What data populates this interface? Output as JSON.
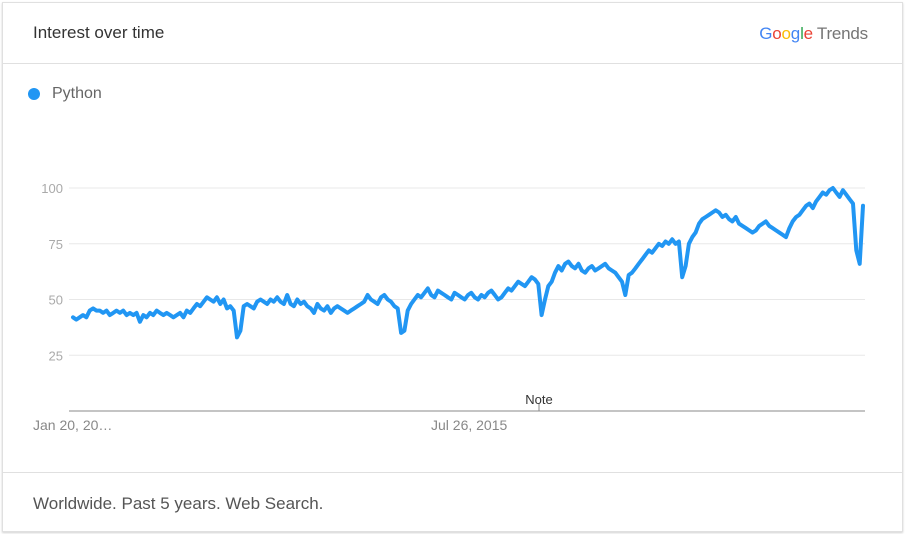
{
  "header": {
    "title": "Interest over time"
  },
  "brand": {
    "google": "Google",
    "product": "Trends"
  },
  "legend": {
    "label": "Python",
    "color": "#2196F3"
  },
  "footer": {
    "text": "Worldwide. Past 5 years. Web Search."
  },
  "note_label": "Note",
  "chart_data": {
    "type": "line",
    "title": "Interest over time",
    "xlabel": "",
    "ylabel": "",
    "ylim": [
      0,
      100
    ],
    "yticks": [
      25,
      50,
      75,
      100
    ],
    "xtick_labels": [
      "Jan 20, 20…",
      "Jul 26, 2015"
    ],
    "grid": true,
    "series": [
      {
        "name": "Python",
        "color": "#2196F3",
        "values": [
          42,
          41,
          42,
          43,
          42,
          45,
          46,
          45,
          45,
          44,
          45,
          43,
          44,
          45,
          44,
          45,
          43,
          44,
          43,
          44,
          40,
          43,
          42,
          44,
          43,
          45,
          44,
          43,
          44,
          43,
          42,
          43,
          44,
          42,
          45,
          44,
          46,
          48,
          47,
          49,
          51,
          50,
          49,
          51,
          48,
          50,
          46,
          47,
          45,
          33,
          36,
          47,
          48,
          47,
          46,
          49,
          50,
          49,
          48,
          50,
          49,
          51,
          49,
          48,
          52,
          48,
          47,
          50,
          48,
          49,
          47,
          46,
          44,
          48,
          46,
          45,
          47,
          44,
          46,
          47,
          46,
          45,
          44,
          45,
          46,
          47,
          48,
          49,
          52,
          50,
          49,
          48,
          51,
          52,
          50,
          49,
          47,
          46,
          35,
          36,
          45,
          48,
          50,
          52,
          51,
          53,
          55,
          52,
          51,
          54,
          53,
          52,
          51,
          50,
          53,
          52,
          51,
          50,
          52,
          53,
          51,
          50,
          52,
          51,
          53,
          54,
          52,
          50,
          51,
          53,
          55,
          54,
          56,
          58,
          57,
          56,
          58,
          60,
          59,
          57,
          43,
          50,
          56,
          58,
          62,
          65,
          63,
          66,
          67,
          65,
          64,
          66,
          63,
          62,
          64,
          65,
          63,
          64,
          65,
          66,
          64,
          63,
          62,
          60,
          58,
          52,
          61,
          62,
          64,
          66,
          68,
          70,
          72,
          71,
          73,
          75,
          74,
          76,
          75,
          77,
          75,
          76,
          60,
          65,
          75,
          78,
          80,
          84,
          86,
          87,
          88,
          89,
          90,
          89,
          87,
          88,
          86,
          85,
          87,
          84,
          83,
          82,
          81,
          80,
          81,
          83,
          84,
          85,
          83,
          82,
          81,
          80,
          79,
          78,
          82,
          85,
          87,
          88,
          90,
          92,
          93,
          91,
          94,
          96,
          98,
          97,
          99,
          100,
          98,
          96,
          99,
          97,
          95,
          93,
          72,
          66,
          92
        ]
      }
    ]
  }
}
